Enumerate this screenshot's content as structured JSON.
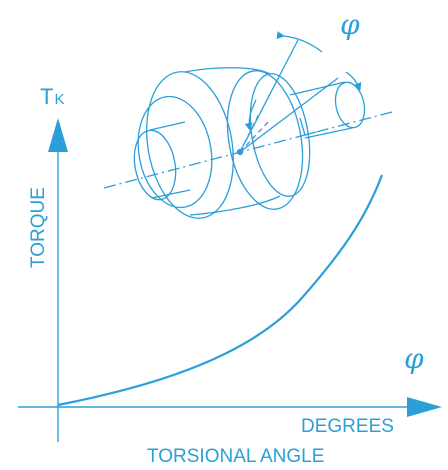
{
  "diagram": {
    "y_axis_symbol_main": "T",
    "y_axis_symbol_sub": "K",
    "y_axis_label": "TORQUE",
    "x_axis_symbol": "φ",
    "x_axis_label": "DEGREES",
    "caption": "TORSIONAL ANGLE",
    "shaft_angle_symbol": "φ",
    "stroke_color": "#2a9fd8",
    "background_color": "#ffffff"
  }
}
